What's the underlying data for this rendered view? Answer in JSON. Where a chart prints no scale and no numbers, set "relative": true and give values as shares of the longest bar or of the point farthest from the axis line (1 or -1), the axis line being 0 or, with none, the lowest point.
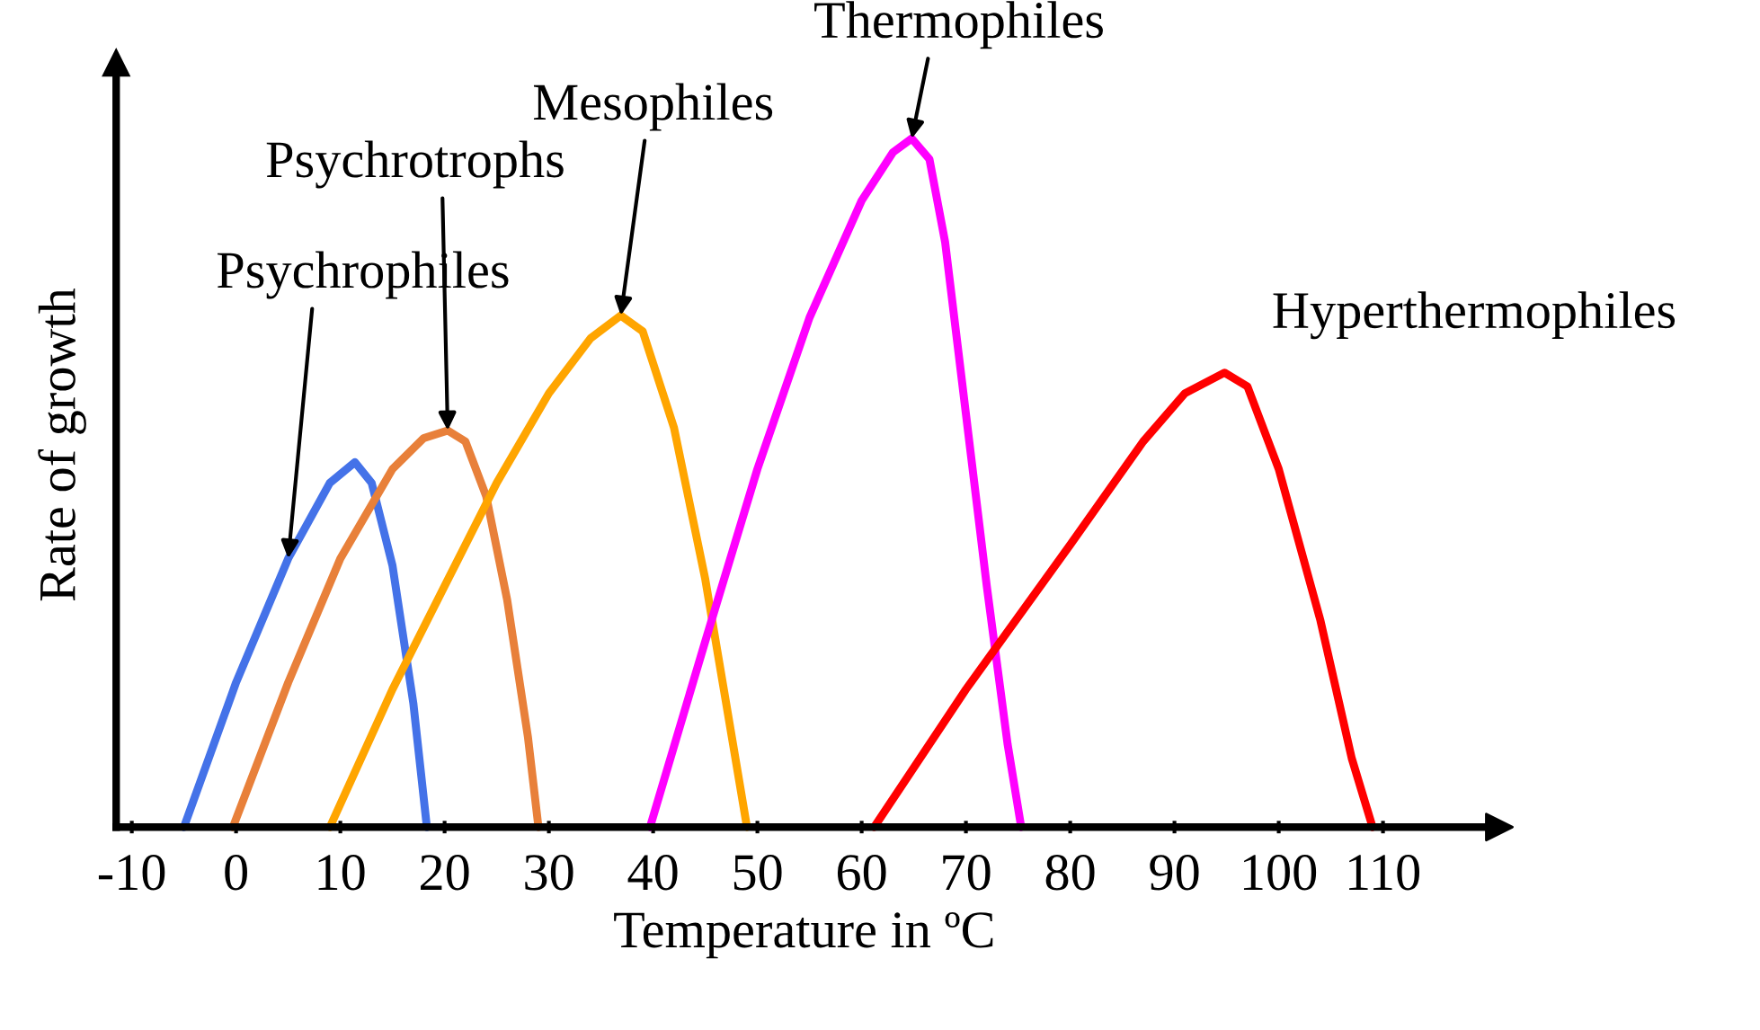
{
  "chart_data": {
    "type": "line",
    "relative": true,
    "xlabel": "Temperature in ºC",
    "ylabel": "Rate of growth",
    "xlim": [
      -11.5,
      120.5
    ],
    "xticks": [
      -10,
      0,
      10,
      20,
      30,
      40,
      50,
      60,
      70,
      80,
      90,
      100,
      110
    ],
    "grid": false,
    "legend": false,
    "marker": "none",
    "line_style": "solid",
    "series": [
      {
        "color": "#4472e8",
        "x": [
          -5,
          0,
          5,
          9,
          11.4,
          13,
          15,
          17,
          18.3
        ],
        "values": [
          0,
          0.21,
          0.39,
          0.5,
          0.53,
          0.5,
          0.38,
          0.18,
          0
        ]
      },
      {
        "color": "#e8803a",
        "x": [
          -0.3,
          5,
          10,
          15,
          18,
          20.3,
          22,
          24,
          26,
          28,
          29
        ],
        "values": [
          0,
          0.21,
          0.39,
          0.52,
          0.565,
          0.576,
          0.56,
          0.48,
          0.33,
          0.13,
          0
        ]
      },
      {
        "color": "#ffa500",
        "x": [
          9,
          15,
          20,
          25,
          30,
          34,
          36.9,
          39,
          42,
          45,
          47,
          49
        ],
        "values": [
          0,
          0.2,
          0.35,
          0.5,
          0.63,
          0.71,
          0.743,
          0.72,
          0.58,
          0.36,
          0.18,
          0
        ]
      },
      {
        "color": "#ff00ff",
        "x": [
          39.7,
          45,
          50,
          55,
          60,
          63,
          64.8,
          66.5,
          68,
          70,
          72,
          74,
          75.3
        ],
        "values": [
          0,
          0.27,
          0.52,
          0.74,
          0.91,
          0.98,
          1.0,
          0.97,
          0.85,
          0.6,
          0.35,
          0.12,
          0
        ]
      },
      {
        "color": "#ff0000",
        "x": [
          61.2,
          70,
          80,
          87,
          91,
          94.8,
          97,
          100,
          104,
          107,
          109
        ],
        "values": [
          0,
          0.2,
          0.41,
          0.56,
          0.63,
          0.66,
          0.64,
          0.52,
          0.3,
          0.1,
          0
        ]
      }
    ],
    "annotations": [
      {
        "text": "Psychrophiles",
        "x": 5,
        "y": 0.39
      },
      {
        "text": "Psychrotrophs",
        "x": 20.3,
        "y": 0.576
      },
      {
        "text": "Mesophiles",
        "x": 36.9,
        "y": 0.743
      },
      {
        "text": "Thermophiles",
        "x": 64.8,
        "y": 1.0
      },
      {
        "text": "Hyperthermophiles",
        "x": 94.8,
        "y": 0.66
      }
    ]
  }
}
